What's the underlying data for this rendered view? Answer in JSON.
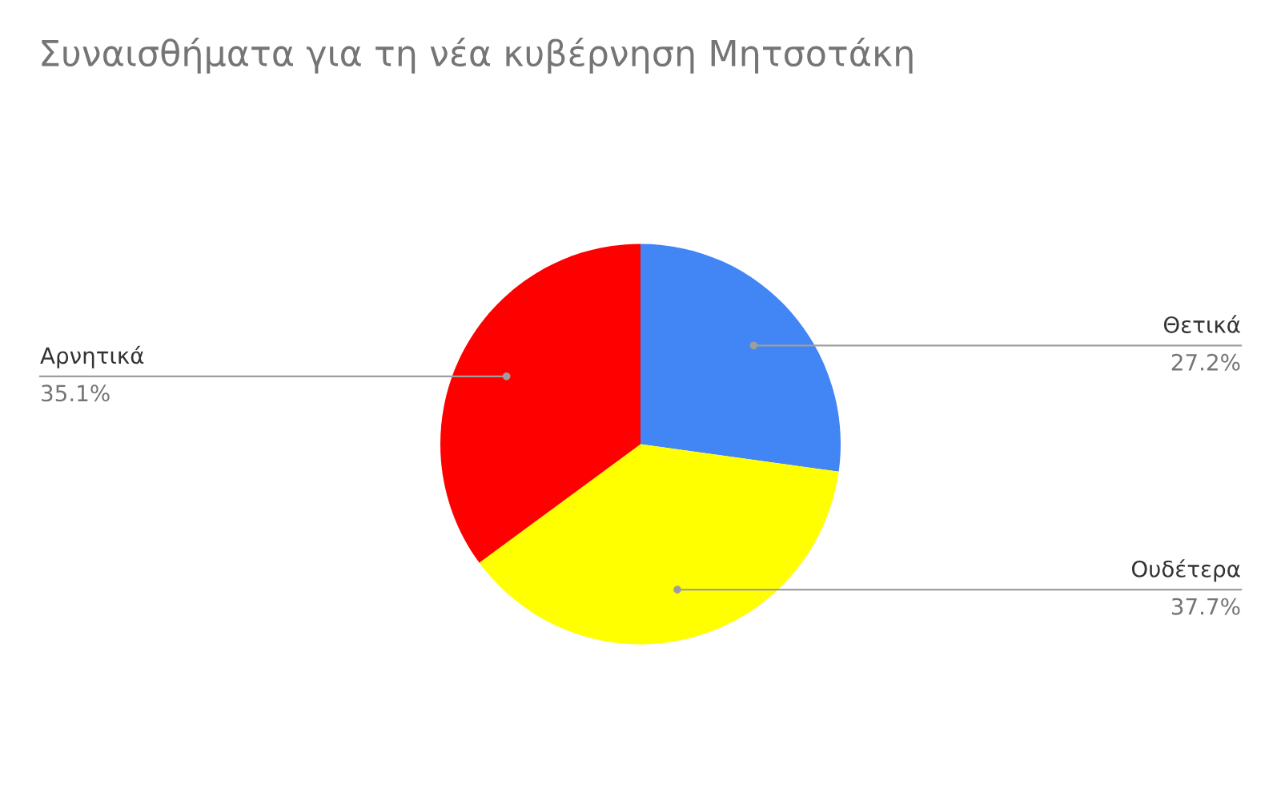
{
  "chart_data": {
    "type": "pie",
    "title": "Συναισθήματα για τη νέα κυβέρνηση Μητσοτάκη",
    "categories": [
      "Θετικά",
      "Ουδέτερα",
      "Αρνητικά"
    ],
    "values": [
      27.2,
      37.7,
      35.1
    ],
    "colors": [
      "#4285f4",
      "#ffff00",
      "#ff0000"
    ],
    "value_labels": [
      "27.2%",
      "37.7%",
      "35.1%"
    ]
  }
}
